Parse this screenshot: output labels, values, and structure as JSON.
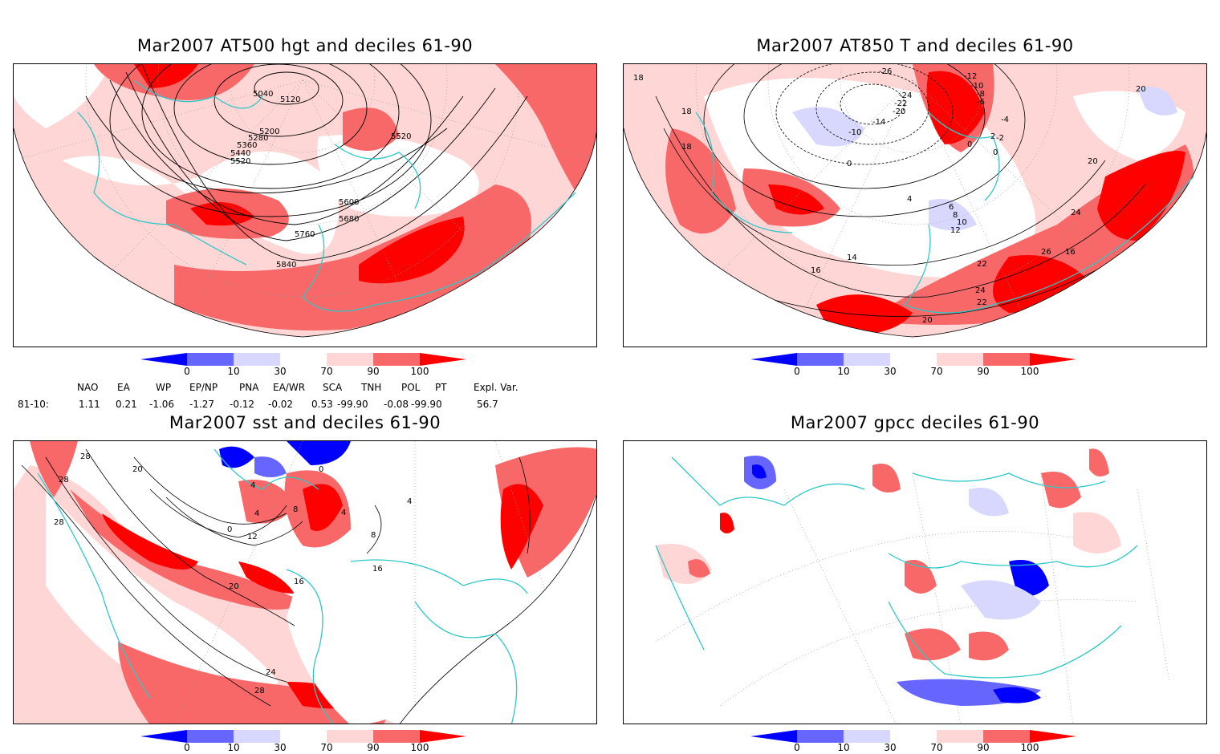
{
  "panels": {
    "p1": {
      "title": "Mar2007 AT500 hgt and deciles 61-90",
      "contour_labels": [
        "5040",
        "5120",
        "5200",
        "5280",
        "5360",
        "5440",
        "5520",
        "5520",
        "5600",
        "5680",
        "5760",
        "5840"
      ]
    },
    "p2": {
      "title": "Mar2007 AT850 T and deciles 61-90",
      "contour_labels": [
        "-26",
        "-24",
        "-22",
        "-20",
        "-14",
        "-12",
        "-10",
        "-8",
        "-6",
        "-4",
        "-2",
        "0",
        "0",
        "0",
        "-10",
        "2",
        "4",
        "6",
        "8",
        "10",
        "12",
        "14",
        "16",
        "16",
        "18",
        "18",
        "18",
        "20",
        "20",
        "20",
        "22",
        "22",
        "24",
        "24",
        "26"
      ]
    },
    "p3": {
      "title": "Mar2007 sst and deciles 61-90",
      "contour_labels": [
        "28",
        "28",
        "20",
        "0",
        "4",
        "8",
        "12",
        "16",
        "20",
        "24",
        "28",
        "28",
        "16",
        "4",
        "4",
        "8",
        "4",
        "0"
      ]
    },
    "p4": {
      "title": "Mar2007 gpcc deciles 61-90"
    }
  },
  "colorbar": {
    "labels": [
      "0",
      "10",
      "30",
      "70",
      "90",
      "100"
    ],
    "colors": [
      "#0000ff",
      "#6666ff",
      "#d8d8ff",
      "#ffffff",
      "#ffd6d6",
      "#f86868",
      "#ff0000"
    ]
  },
  "map_colors": {
    "coast": "#2ec8c8",
    "grid": "#999999",
    "contour": "#000000",
    "light_red": "#ffd6d6",
    "mid_red": "#f86868",
    "dark_red": "#ff0000",
    "light_blue": "#d8d8ff",
    "mid_blue": "#6666ff",
    "dark_blue": "#0000ff"
  },
  "indices": {
    "headers": [
      "NAO",
      "EA",
      "WP",
      "EP/NP",
      "PNA",
      "EA/WR",
      "SCA",
      "TNH",
      "POL",
      "PT",
      "Expl. Var."
    ],
    "row_label": "81-10:",
    "values": [
      "1.11",
      "0.21",
      "-1.06",
      "-1.27",
      "-0.12",
      "-0.02",
      "0.53",
      "-99.90",
      "-0.08",
      "-99.90",
      "56.7"
    ]
  }
}
